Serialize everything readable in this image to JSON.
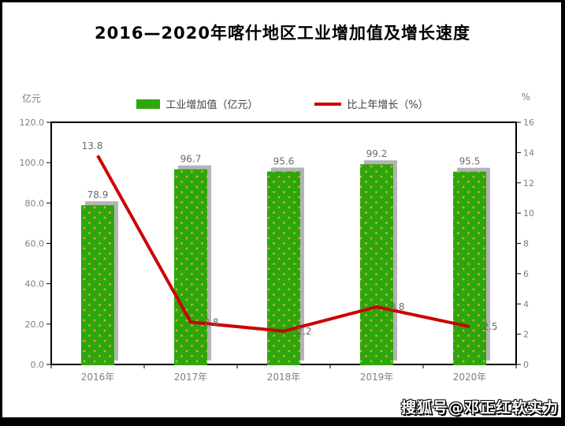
{
  "page": {
    "title": "2016—2020年喀什地区工业增加值及增长速度",
    "watermark": "搜狐号@邓正红软实力"
  },
  "chart_data": {
    "type": "bar+line combo",
    "title": "2016—2020年喀什地区工业增加值及增长速度",
    "categories": [
      "2016年",
      "2017年",
      "2018年",
      "2019年",
      "2020年"
    ],
    "series": [
      {
        "name": "工业增加值（亿元）",
        "type": "bar",
        "axis": "left",
        "color": "#2da60d",
        "dot_color": "#d1b03a",
        "values": [
          78.9,
          96.7,
          95.6,
          99.2,
          95.5
        ],
        "labels": [
          "78.9",
          "96.7",
          "95.6",
          "99.2",
          "95.5"
        ]
      },
      {
        "name": "比上年增长（%）",
        "type": "line",
        "axis": "right",
        "color": "#cc0000",
        "values": [
          13.8,
          2.8,
          2.2,
          3.8,
          2.5
        ],
        "labels": [
          "13.8",
          "2.8",
          "2.2",
          "3.8",
          "2.5"
        ]
      }
    ],
    "left_axis": {
      "unit": "亿元",
      "min": 0,
      "max": 120,
      "ticks": [
        "0.0",
        "20.0",
        "40.0",
        "60.0",
        "80.0",
        "100.0",
        "120.0"
      ]
    },
    "right_axis": {
      "unit": "%",
      "min": 0,
      "max": 16,
      "ticks": [
        "0",
        "2",
        "4",
        "6",
        "8",
        "10",
        "12",
        "14",
        "16"
      ]
    },
    "legend_position": "top",
    "grid": false
  }
}
